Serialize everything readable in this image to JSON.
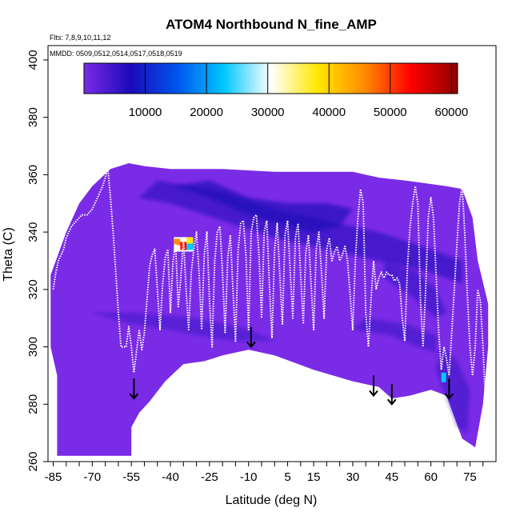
{
  "chart_data": {
    "type": "heatmap",
    "title": "ATOM4 Northbound N_fine_AMP",
    "flights_label": "Flts: 7,8,9,10,11,12",
    "dates_label": "MMDD: 0509,0512,0514,0517,0518,0519",
    "xlabel": "Latitude (deg N)",
    "ylabel": "Theta (C)",
    "xlim": [
      -87,
      85
    ],
    "ylim": [
      260,
      405
    ],
    "x_ticks": [
      -85,
      -70,
      -55,
      -40,
      -25,
      -10,
      5,
      15,
      30,
      45,
      60,
      75
    ],
    "y_ticks": [
      260,
      280,
      300,
      320,
      340,
      360,
      380,
      400
    ],
    "colorbar": {
      "range": [
        0,
        61000
      ],
      "ticks": [
        10000,
        20000,
        30000,
        40000,
        50000,
        60000
      ],
      "colors": [
        "#7a2be6",
        "#1a0ab8",
        "#0055ee",
        "#00c8ff",
        "#ffffff",
        "#ffe800",
        "#ff8c00",
        "#ff0000",
        "#8b0000"
      ]
    },
    "background_color": "#7a2be6",
    "arrow_latitudes": [
      -54,
      -9,
      38,
      45,
      67
    ],
    "tropopause_line_color": "#ffffff"
  }
}
